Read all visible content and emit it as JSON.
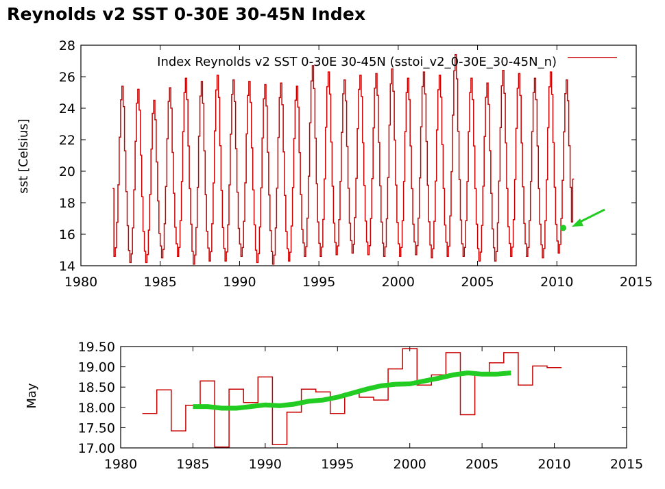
{
  "title": "Reynolds v2 SST 0-30E 30-45N Index",
  "colors": {
    "series": "#c80000",
    "highlight": "#22cc22",
    "frame": "#000000"
  },
  "chart_data": [
    {
      "type": "line",
      "name": "monthly",
      "ylabel": "sst [Celsius]",
      "xlim": [
        1980,
        2015
      ],
      "ylim": [
        14,
        28
      ],
      "xticks": [
        "1980",
        "1985",
        "1990",
        "1995",
        "2000",
        "2005",
        "2010",
        "2015"
      ],
      "yticks": [
        "14",
        "16",
        "18",
        "20",
        "22",
        "24",
        "26",
        "28"
      ],
      "legend_position": "top-right",
      "series": [
        {
          "name": "Index Reynolds v2 SST 0-30E 30-45N (sstoi_v2_0-30E_30-45N_n)",
          "style": "steps",
          "start_year": 1982,
          "annual_max": [
            25.4,
            25.2,
            24.5,
            25.3,
            25.9,
            25.7,
            26.1,
            25.8,
            25.7,
            25.5,
            25.6,
            25.4,
            26.7,
            26.3,
            25.8,
            26.1,
            26.2,
            26.5,
            25.9,
            26.3,
            26.1,
            27.4,
            25.9,
            25.6,
            26.4,
            26.2,
            25.9,
            26.3,
            25.8
          ],
          "annual_min": [
            14.6,
            14.2,
            14.2,
            14.5,
            14.6,
            14.1,
            14.3,
            14.3,
            14.6,
            14.2,
            14.1,
            14.3,
            14.6,
            14.6,
            14.7,
            14.8,
            14.7,
            14.6,
            14.6,
            14.7,
            14.5,
            14.6,
            14.6,
            14.3,
            14.3,
            14.6,
            14.6,
            14.5,
            14.8
          ],
          "first_value": 18.9,
          "last_value": 19.5
        }
      ],
      "highlight_point": {
        "x": 2010.4,
        "y": 16.4
      }
    },
    {
      "type": "line",
      "name": "may",
      "ylabel": "May",
      "xlim": [
        1980,
        2015
      ],
      "ylim": [
        17.0,
        19.5
      ],
      "xticks": [
        "1980",
        "1985",
        "1990",
        "1995",
        "2000",
        "2005",
        "2010",
        "2015"
      ],
      "yticks": [
        "17.00",
        "17.50",
        "18.00",
        "18.50",
        "19.00",
        "19.50"
      ],
      "series": [
        {
          "name": "May",
          "style": "steps",
          "x": [
            1982,
            1983,
            1984,
            1985,
            1986,
            1987,
            1988,
            1989,
            1990,
            1991,
            1992,
            1993,
            1994,
            1995,
            1996,
            1997,
            1998,
            1999,
            2000,
            2001,
            2002,
            2003,
            2004,
            2005,
            2006,
            2007,
            2008,
            2009,
            2010
          ],
          "y": [
            17.85,
            18.43,
            17.42,
            18.05,
            18.65,
            17.02,
            18.45,
            18.12,
            18.75,
            17.08,
            17.88,
            18.45,
            18.38,
            17.85,
            18.35,
            18.25,
            18.18,
            18.95,
            19.45,
            18.55,
            18.8,
            19.35,
            17.82,
            18.8,
            19.1,
            19.35,
            18.55,
            19.02,
            18.98
          ]
        },
        {
          "name": "smoothed",
          "style": "thick-line",
          "x": [
            1985,
            1986,
            1987,
            1988,
            1989,
            1990,
            1991,
            1992,
            1993,
            1994,
            1995,
            1996,
            1997,
            1998,
            1999,
            2000,
            2001,
            2002,
            2003,
            2004,
            2005,
            2006,
            2007
          ],
          "y": [
            18.02,
            18.02,
            17.98,
            17.98,
            18.02,
            18.06,
            18.04,
            18.08,
            18.15,
            18.18,
            18.25,
            18.35,
            18.45,
            18.53,
            18.57,
            18.58,
            18.65,
            18.72,
            18.8,
            18.85,
            18.82,
            18.82,
            18.85
          ]
        }
      ]
    }
  ]
}
